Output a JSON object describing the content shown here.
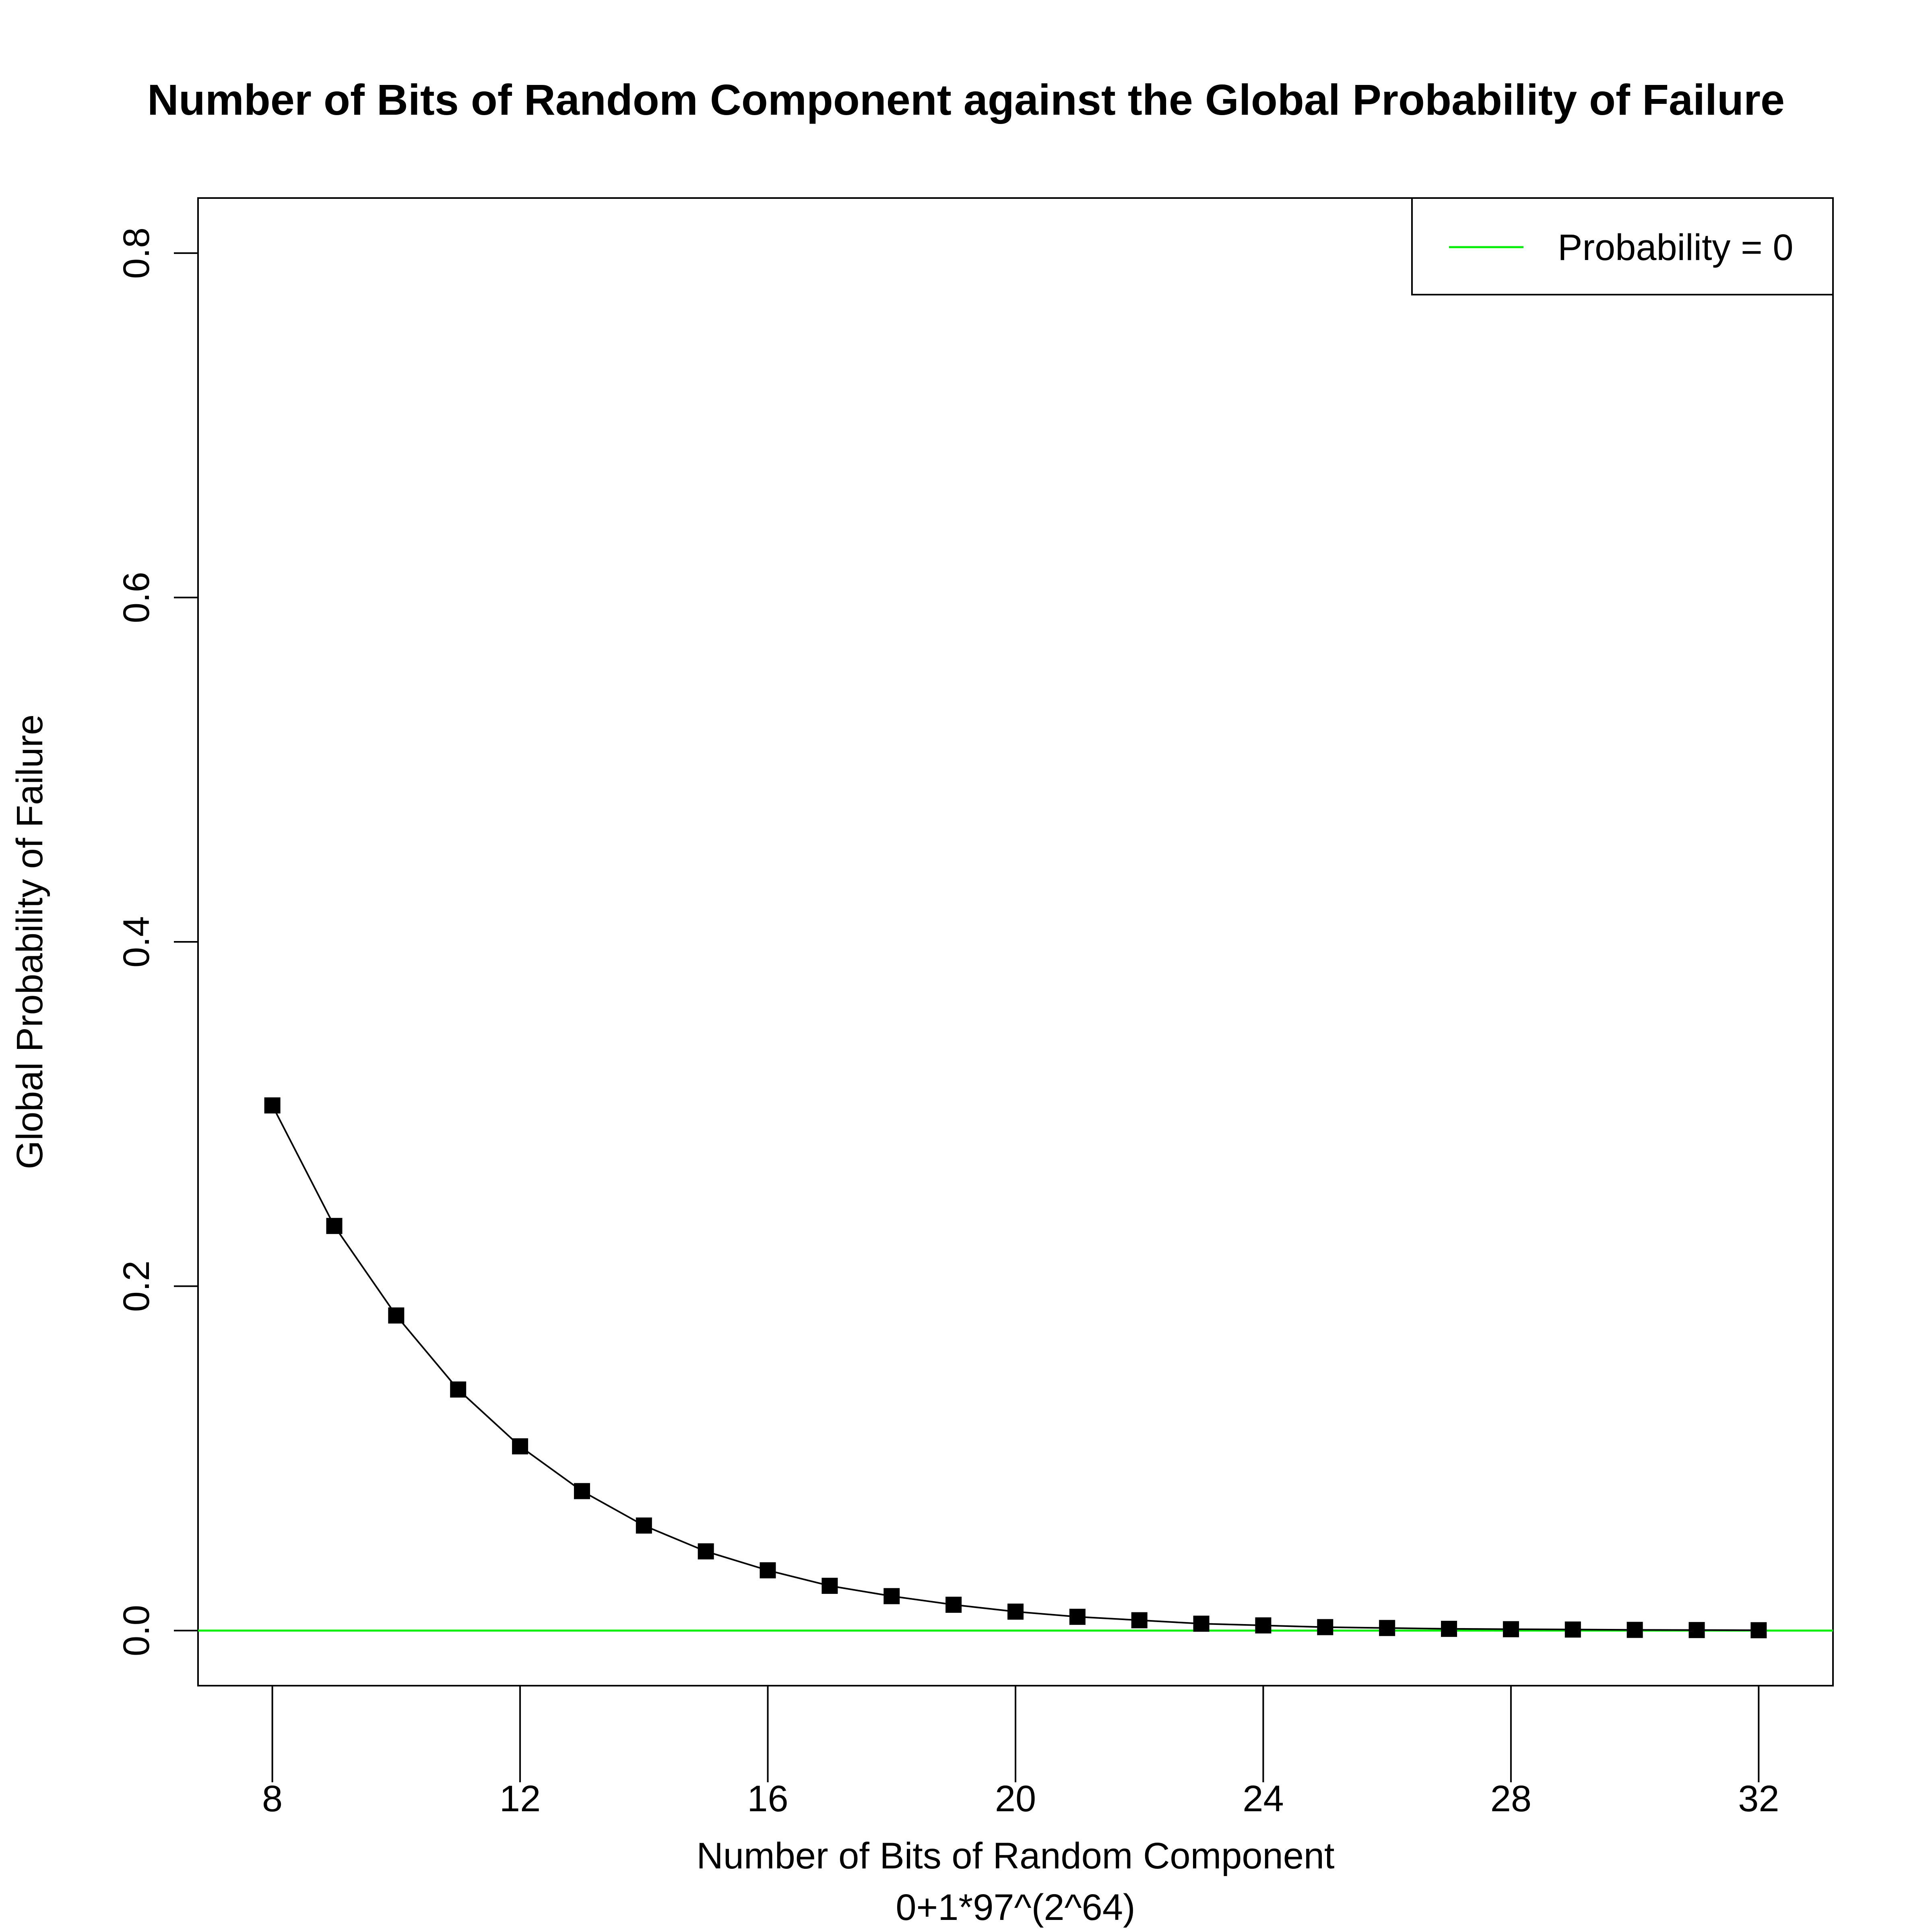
{
  "chart_data": {
    "type": "line",
    "title": "Number of Bits of Random Component against the Global Probability of Failure",
    "xlabel": "Number of Bits of Random Component",
    "xlabel_sub": "0+1*97^(2^64)",
    "ylabel": "Global Probability of Failure",
    "xlim": [
      6.8,
      33.2
    ],
    "ylim": [
      -0.032,
      0.832
    ],
    "x_ticks": [
      8,
      12,
      16,
      20,
      24,
      28,
      32
    ],
    "x_tick_labels": [
      "8",
      "12",
      "16",
      "20",
      "24",
      "28",
      "32"
    ],
    "y_ticks": [
      0.0,
      0.2,
      0.4,
      0.6,
      0.8
    ],
    "y_tick_labels": [
      "0.0",
      "0.2",
      "0.4",
      "0.6",
      "0.8"
    ],
    "grid": false,
    "legend": {
      "position": "top-right",
      "entries": [
        {
          "label": "Probability = 0",
          "color": "#00ee00"
        }
      ]
    },
    "reference_line": {
      "y": 0,
      "color": "#00ee00"
    },
    "series": [
      {
        "color": "#000000",
        "marker": "filled-square",
        "x": [
          8,
          9,
          10,
          11,
          12,
          13,
          14,
          15,
          16,
          17,
          18,
          19,
          20,
          21,
          22,
          23,
          24,
          25,
          26,
          27,
          28,
          29,
          30,
          31,
          32
        ],
        "y": [
          0.305,
          0.235,
          0.183,
          0.14,
          0.107,
          0.081,
          0.061,
          0.046,
          0.035,
          0.026,
          0.02,
          0.015,
          0.011,
          0.008,
          0.006,
          0.004,
          0.003,
          0.002,
          0.0015,
          0.001,
          0.0008,
          0.0006,
          0.0004,
          0.0003,
          0.0002
        ]
      }
    ]
  }
}
